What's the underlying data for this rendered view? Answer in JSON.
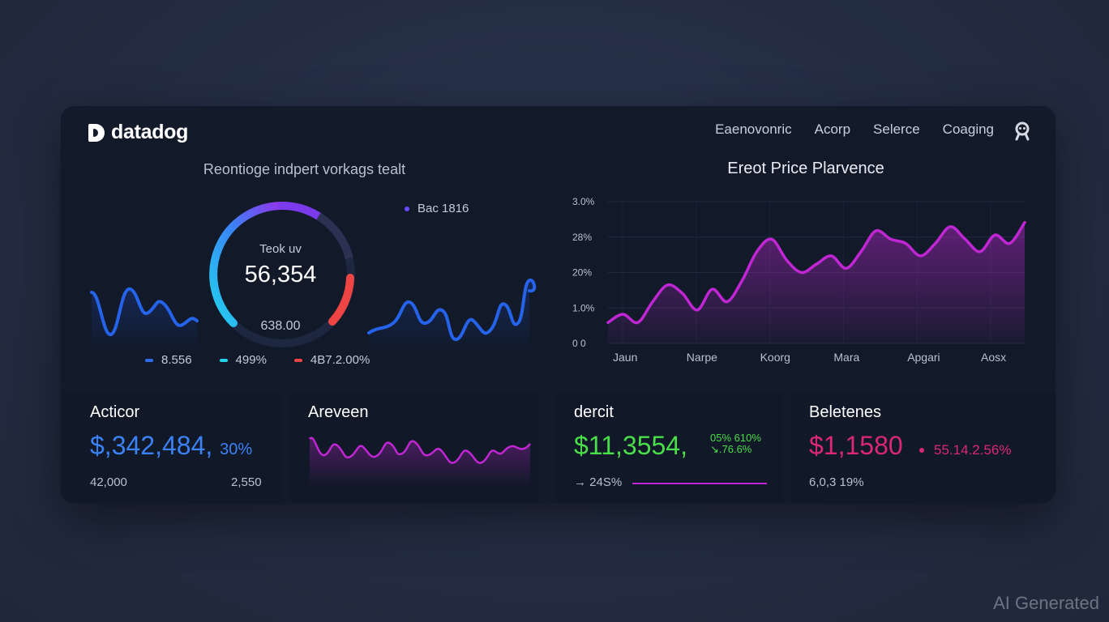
{
  "app": {
    "logo_text": "datadog"
  },
  "nav": {
    "items": [
      "Eaenovonric",
      "Acorp",
      "Selerce",
      "Coaging"
    ]
  },
  "left_panel": {
    "title": "Reontioge indpert vorkags tealt",
    "legend_top": {
      "label": "Bac 1816",
      "color": "#6a4cff"
    },
    "gauge": {
      "label": "Teok uv",
      "value": "56,354",
      "sub": "638.00",
      "colors": [
        "#22d3ee",
        "#3b82f6",
        "#9333ea",
        "#ef4444"
      ]
    },
    "legend_bottom": [
      {
        "label": "8.556",
        "color": "#2f6df6"
      },
      {
        "label": "499%",
        "color": "#22d3ee"
      },
      {
        "label": "4B7.2.00%",
        "color": "#ef4444"
      }
    ]
  },
  "right_panel": {
    "chart_data": {
      "type": "area",
      "title": "Ereot Price Plarvence",
      "x_ticks": [
        "Jaun",
        "Narpe",
        "Koorg",
        "Mara",
        "Apgari",
        "Aosx"
      ],
      "y_ticks": [
        "0 0",
        "1.0%",
        "20%",
        "28%",
        "3.0%"
      ],
      "series": [
        {
          "values": [
            5,
            7,
            5,
            10,
            14,
            12,
            8,
            13,
            10,
            15,
            22,
            25,
            20,
            17,
            19,
            21,
            18,
            22,
            27,
            25,
            24,
            21,
            24,
            28,
            25,
            22,
            26,
            24,
            29
          ]
        }
      ],
      "ylim": [
        0,
        34
      ],
      "color": "#c026d3"
    }
  },
  "cards": [
    {
      "title": "Acticor",
      "big": "$,342,484,",
      "big_extra": "30%",
      "small_left": "42,000",
      "small_right": "2,550",
      "color": "#3b82f6"
    },
    {
      "title": "Areveen",
      "color": "#c026d3"
    },
    {
      "title": "dercit",
      "big": "$11,3554,",
      "extra_top": "05% 610%",
      "extra_bottom": "↘.76.6%",
      "small_left": "→ 24S%",
      "color": "#4ade4a"
    },
    {
      "title": "Beletenes",
      "big": "$1,1580",
      "extra": "55.14.2.56%",
      "small_left": "6,0,3 19%",
      "color": "#db2777"
    }
  ],
  "watermark": "AI Generated"
}
